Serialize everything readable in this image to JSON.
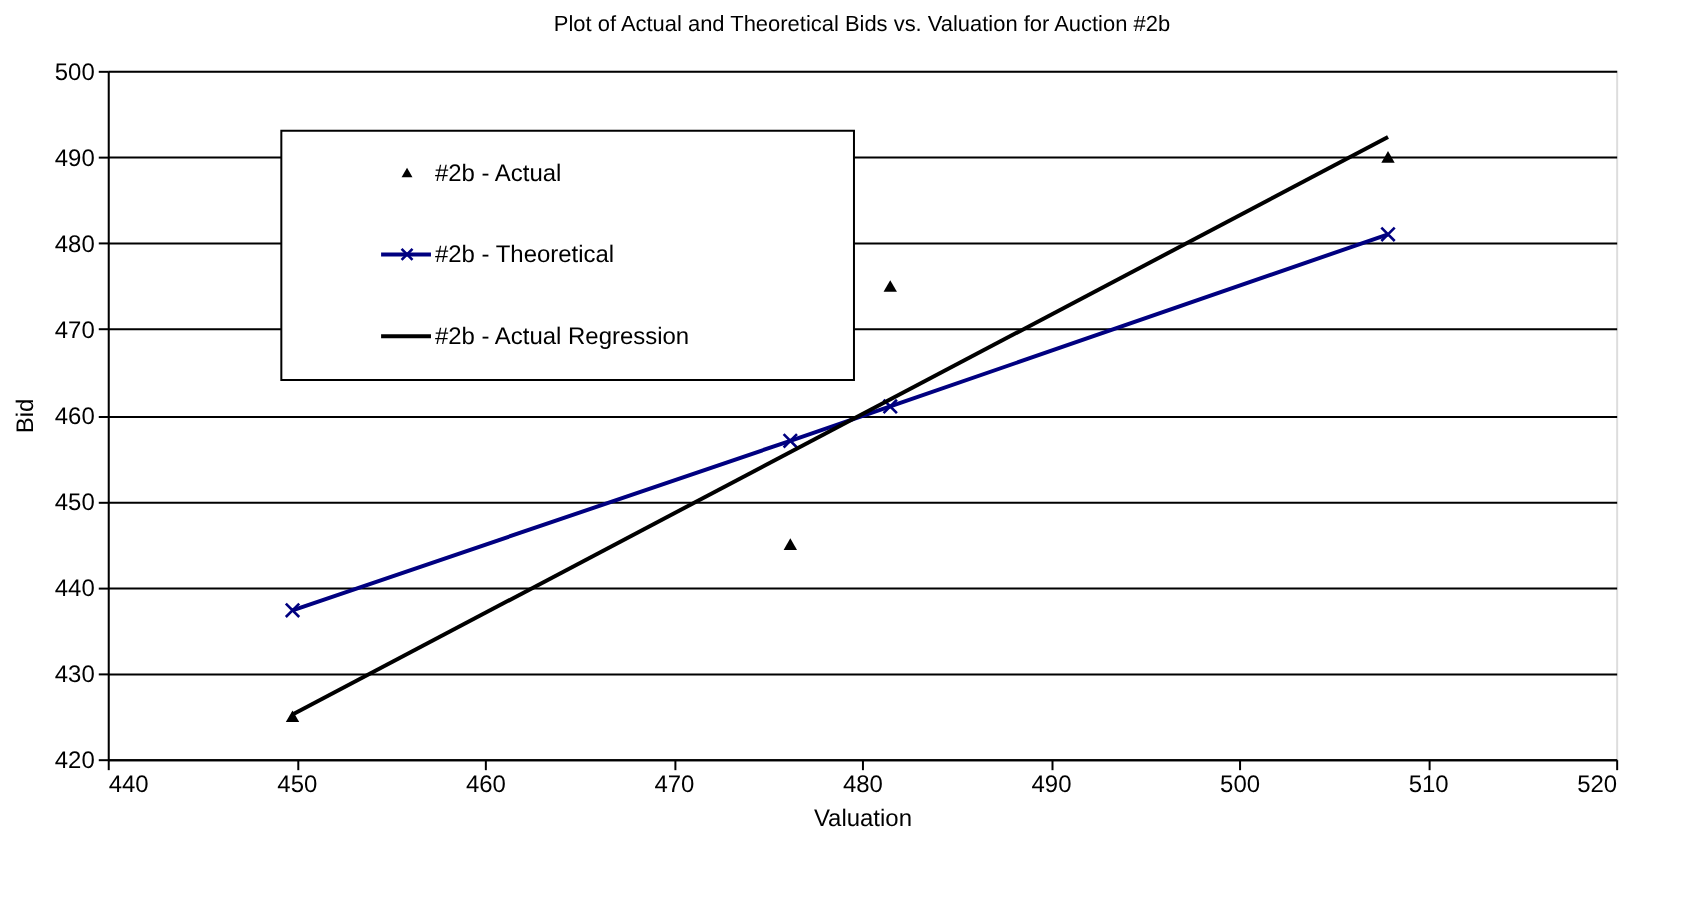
{
  "chart_data": {
    "type": "scatter",
    "title": "Plot of Actual and Theoretical Bids vs. Valuation for Auction #2b",
    "xlabel": "Valuation",
    "ylabel": "Bid",
    "xlim": [
      440,
      520
    ],
    "xticks": [
      440,
      450,
      460,
      470,
      480,
      490,
      500,
      510,
      520
    ],
    "ylim": [
      420,
      500
    ],
    "yticks": [
      420,
      430,
      440,
      450,
      460,
      470,
      480,
      490,
      500
    ],
    "grid": "y",
    "legend": "top left",
    "series": [
      {
        "name": "#2b - Actual",
        "marker": "triangle",
        "color": "#000000",
        "x": [
          449.8,
          476.2,
          481.5,
          507.9
        ],
        "values": [
          425,
          445,
          475,
          490
        ]
      },
      {
        "name": "#2b - Theoretical",
        "type": "line",
        "marker": "cross",
        "color": "#000080",
        "x": [
          449.8,
          476.2,
          481.5,
          507.9
        ],
        "values": [
          437.3,
          457,
          461,
          481
        ]
      },
      {
        "name": "#2b - Actual Regression",
        "type": "line",
        "marker": "none",
        "color": "#000000",
        "x": [
          449.8,
          507.9
        ],
        "values": [
          425.2,
          492.3
        ]
      }
    ]
  }
}
